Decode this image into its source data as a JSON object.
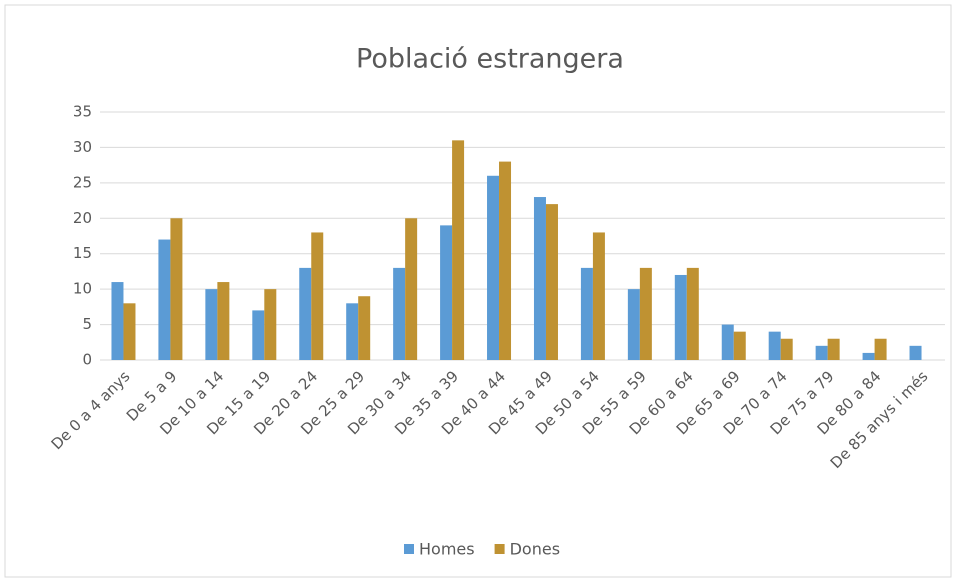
{
  "chart_data": {
    "type": "bar",
    "title": "Població estrangera",
    "categories": [
      "De 0 a 4 anys",
      "De 5 a 9",
      "De 10 a 14",
      "De 15 a 19",
      "De 20 a 24",
      "De 25 a 29",
      "De 30 a 34",
      "De 35 a 39",
      "De 40 a 44",
      "De 45 a 49",
      "De 50 a 54",
      "De 55 a 59",
      "De 60 a 64",
      "De 65 a 69",
      "De 70 a 74",
      "De 75 a 79",
      "De 80 a 84",
      "De 85 anys i més"
    ],
    "series": [
      {
        "name": "Homes",
        "color": "#5b9bd5",
        "values": [
          11,
          17,
          10,
          7,
          13,
          8,
          13,
          19,
          26,
          23,
          13,
          10,
          12,
          5,
          4,
          2,
          1,
          2
        ]
      },
      {
        "name": "Dones",
        "color": "#bf9232",
        "values": [
          8,
          20,
          11,
          10,
          18,
          9,
          20,
          31,
          28,
          22,
          18,
          13,
          13,
          4,
          3,
          3,
          3,
          0
        ]
      }
    ],
    "ylim": [
      0,
      35
    ],
    "yticks": [
      0,
      5,
      10,
      15,
      20,
      25,
      30,
      35
    ],
    "grid": true,
    "legend": "bottom"
  }
}
